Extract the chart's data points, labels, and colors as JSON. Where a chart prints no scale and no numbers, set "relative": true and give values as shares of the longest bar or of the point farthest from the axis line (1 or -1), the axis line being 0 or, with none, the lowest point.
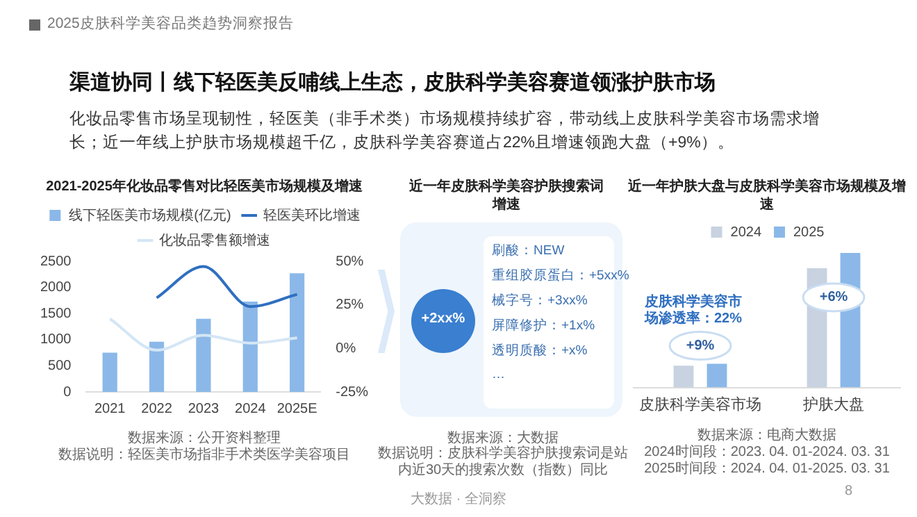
{
  "chart_data": [
    {
      "type": "other",
      "title": "渠道协同丨线下轻医美反哺线上生态，皮肤科学美容赛道领涨护肤市场",
      "subtitle": "化妆品零售市场呈现韧性，轻医美（非手术类）市场规模持续扩容，带动线上皮肤科学美容市场需求增长；近一年线上护肤市场规模超千亿，皮肤科学美容赛道占22%且增速领跑大盘（+9%）。",
      "annotations": [
        "2025皮肤科学美容品类趋势洞察报告",
        "大数据 · 全洞察",
        "8"
      ]
    },
    {
      "type": "bar",
      "title": "2021-2025年化妆品零售对比轻医美市场规模及增速",
      "categories": [
        "2021",
        "2022",
        "2023",
        "2024",
        "2025E"
      ],
      "series": [
        {
          "name": "线下轻医美市场规模(亿元)",
          "type": "bar",
          "color": "#8bb8e8",
          "values": [
            750,
            960,
            1400,
            1730,
            2270
          ]
        },
        {
          "name": "轻医美环比增速",
          "type": "line",
          "axis": "y2",
          "color": "#2f6fc0",
          "values": [
            null,
            29,
            47,
            24,
            31
          ]
        },
        {
          "name": "化妆品零售额增速",
          "type": "line",
          "axis": "y2",
          "color": "#d5e6f5",
          "values": [
            17,
            -1,
            7.5,
            3,
            6
          ]
        }
      ],
      "ylim": [
        0,
        2500
      ],
      "yticks": [
        0,
        500,
        1000,
        1500,
        2000,
        2500
      ],
      "y2lim": [
        -25,
        50
      ],
      "y2ticks": [
        {
          "value": -25,
          "label": "-25%"
        },
        {
          "value": 0,
          "label": "0%"
        },
        {
          "value": 25,
          "label": "25%"
        },
        {
          "value": 50,
          "label": "50%"
        }
      ],
      "grid": false,
      "legend": "top",
      "marker": "none",
      "annotations": [
        "数据来源：公开资料整理",
        "数据说明：轻医美市场指非手术类医学美容项目"
      ]
    },
    {
      "type": "other",
      "title": "近一年皮肤科学美容护肤搜索词增速",
      "annotations": [
        "+2xx%",
        "刷酸：NEW",
        "重组胶原蛋白：+5xx%",
        "械字号：+3xx%",
        "屏障修护：+1x%",
        "透明质酸：+x%",
        "…",
        "数据来源：大数据",
        "数据说明：皮肤科学美容护肤搜索词是站内近30天的搜索次数（指数）同比"
      ]
    },
    {
      "type": "bar",
      "title": "近一年护肤大盘与皮肤科学美容市场规模及增速",
      "categories": [
        "皮肤科学美容市场",
        "护肤大盘"
      ],
      "series": [
        {
          "name": "2024",
          "color": "#c8d2e0",
          "values": [
            0.162,
            0.887
          ]
        },
        {
          "name": "2025",
          "color": "#8bb8e8",
          "values": [
            0.176,
            1
          ]
        }
      ],
      "relative": true,
      "grid": false,
      "legend": "top",
      "annotations": [
        {
          "text": "+9%",
          "x": "皮肤科学美容市场",
          "y": 0.31
        },
        {
          "text": "+6%",
          "x": "护肤大盘",
          "y": 0.67
        },
        "皮肤科学美容市场渗透率：22%",
        "数据来源：电商大数据",
        "2024时间段：2023. 04. 01-2024. 03. 31",
        "2025时间段：2024. 04. 01-2025. 03. 31"
      ]
    }
  ]
}
